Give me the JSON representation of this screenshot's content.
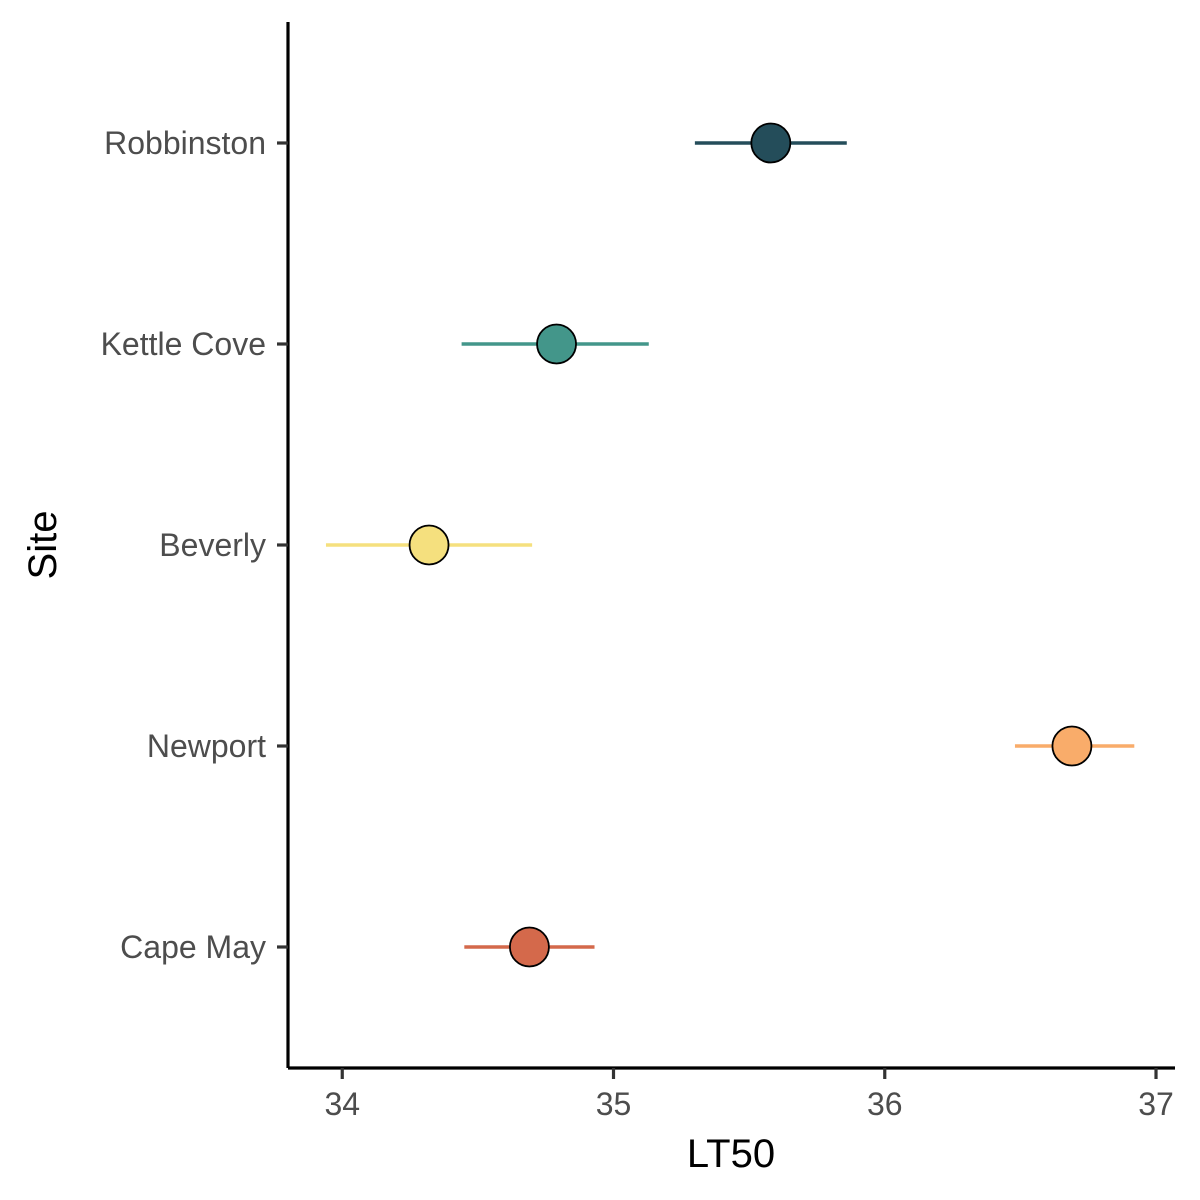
{
  "chart_data": {
    "type": "scatter",
    "orientation": "horizontal-dot-with-error-bars",
    "title": "",
    "xlabel": "LT50",
    "ylabel": "Site",
    "xlim": [
      33.8,
      37.07
    ],
    "xticks": [
      "34",
      "35",
      "36",
      "37"
    ],
    "xtick_values": [
      34,
      35,
      36,
      37
    ],
    "categories": [
      "Cape May",
      "Newport",
      "Beverly",
      "Kettle Cove",
      "Robbinston"
    ],
    "points": [
      {
        "site": "Cape May",
        "value": 34.69,
        "lower": 34.45,
        "upper": 34.93,
        "color": "#d4694b"
      },
      {
        "site": "Newport",
        "value": 36.69,
        "lower": 36.48,
        "upper": 36.92,
        "color": "#f9ac6a"
      },
      {
        "site": "Beverly",
        "value": 34.32,
        "lower": 33.94,
        "upper": 34.7,
        "color": "#f5e07e"
      },
      {
        "site": "Kettle Cove",
        "value": 34.79,
        "lower": 34.44,
        "upper": 35.13,
        "color": "#43968a"
      },
      {
        "site": "Robbinston",
        "value": 35.58,
        "lower": 35.3,
        "upper": 35.86,
        "color": "#244d5a"
      }
    ],
    "grid": false,
    "legend": "none"
  }
}
